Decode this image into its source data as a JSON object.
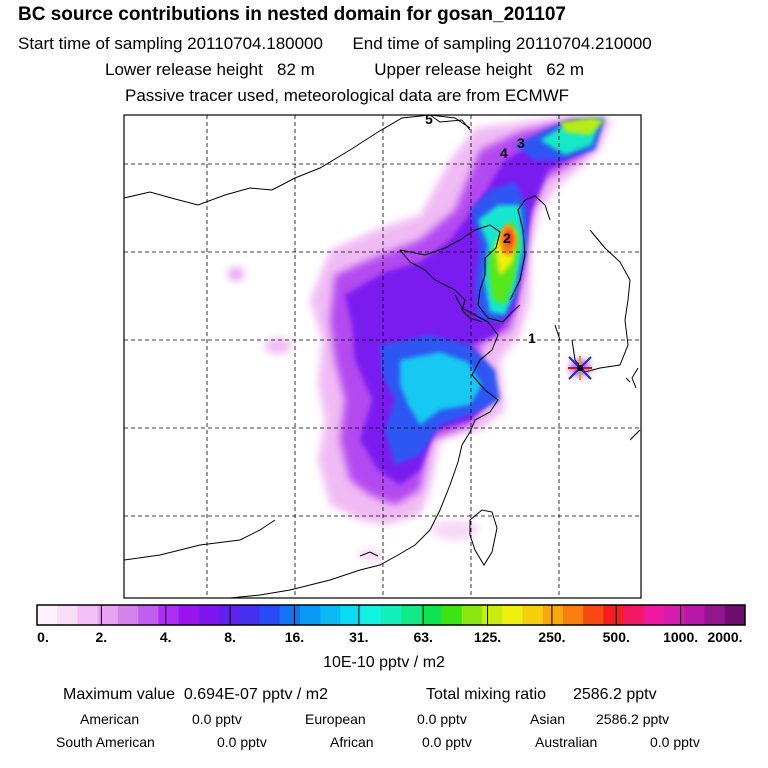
{
  "header": {
    "title": "BC  source contributions in nested domain for gosan_201107",
    "start_label": "Start time of sampling",
    "start_value": "20110704.180000",
    "end_label": "End time of sampling",
    "end_value": "20110704.210000",
    "lower_label": "Lower release height",
    "lower_value": "82 m",
    "upper_label": "Upper release height",
    "upper_value": "62 m",
    "tracer_note": "Passive tracer used, meteorological data are from ECMWF"
  },
  "map": {
    "point_labels": [
      "5",
      "3",
      "4",
      "2",
      "1"
    ],
    "receptor_icon": "star-marker-icon"
  },
  "colorbar": {
    "colors": [
      "#fdf2fd",
      "#f8dcf8",
      "#f2c0f5",
      "#e8a4f2",
      "#d482ee",
      "#c35ff0",
      "#ad2ff2",
      "#9a13f0",
      "#7d16f0",
      "#6021ef",
      "#4630f0",
      "#2a4af5",
      "#1372f5",
      "#0b99f6",
      "#0bbaf5",
      "#0cdcf2",
      "#12f2e2",
      "#11efbb",
      "#12e886",
      "#10e452",
      "#3ce412",
      "#8ae810",
      "#c7ee10",
      "#eef010",
      "#f7cf10",
      "#f8a810",
      "#f88010",
      "#f74a12",
      "#f51d20",
      "#f21866",
      "#ef18a0",
      "#d91ab0",
      "#b818a8",
      "#951490",
      "#6e0c70"
    ],
    "tick_labels": [
      "0.",
      "2.",
      "4.",
      "8.",
      "16.",
      "31.",
      "63.",
      "125.",
      "250.",
      "500.",
      "1000.",
      "2000."
    ],
    "unit_label": "10E-10 pptv / m2"
  },
  "summary": {
    "max_label": "Maximum value",
    "max_value": "0.694E-07 pptv / m2",
    "total_label": "Total mixing ratio",
    "total_value": "2586.2 pptv",
    "contributions": [
      {
        "name": "American",
        "value": "0.0 pptv"
      },
      {
        "name": "European",
        "value": "0.0 pptv"
      },
      {
        "name": "Asian",
        "value": "2586.2 pptv"
      },
      {
        "name": "South American",
        "value": "0.0 pptv"
      },
      {
        "name": "African",
        "value": "0.0 pptv"
      },
      {
        "name": "Australian",
        "value": "0.0 pptv"
      }
    ]
  }
}
